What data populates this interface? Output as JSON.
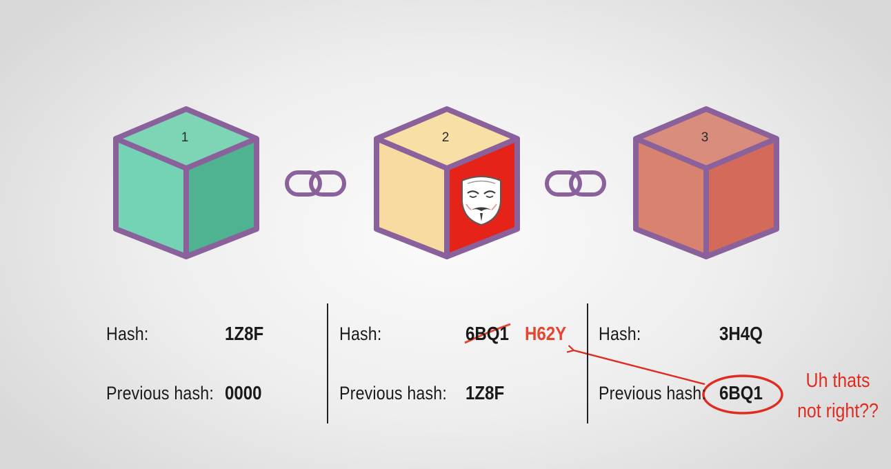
{
  "blocks": [
    {
      "number": "1",
      "hash_label": "Hash:",
      "hash": "1Z8F",
      "prev_label": "Previous hash:",
      "prev_hash": "0000",
      "colors": {
        "top": "#7dd5b6",
        "left": "#74d3b4",
        "right": "#4fb291"
      }
    },
    {
      "number": "2",
      "hash_label": "Hash:",
      "hash": "6BQ1",
      "hash_new": "H62Y",
      "prev_label": "Previous hash:",
      "prev_hash": "1Z8F",
      "hacked": true,
      "colors": {
        "top": "#f7dfa6",
        "left": "#f7dba1",
        "right": "#e62318"
      }
    },
    {
      "number": "3",
      "hash_label": "Hash:",
      "hash": "3H4Q",
      "prev_label": "Previous hash:",
      "prev_hash": "6BQ1",
      "colors": {
        "top": "#d98d7d",
        "left": "#d8826f",
        "right": "#d36a5a"
      }
    }
  ],
  "annotation": {
    "line1": "Uh thats",
    "line2": "not right??"
  },
  "colors": {
    "cube_outline": "#8a619b",
    "link": "#8a619b",
    "annotation": "#e02c20",
    "new_hash": "#e6452f"
  },
  "icons": {
    "link": "chain-link-icon",
    "hacker": "anonymous-mask-icon"
  }
}
